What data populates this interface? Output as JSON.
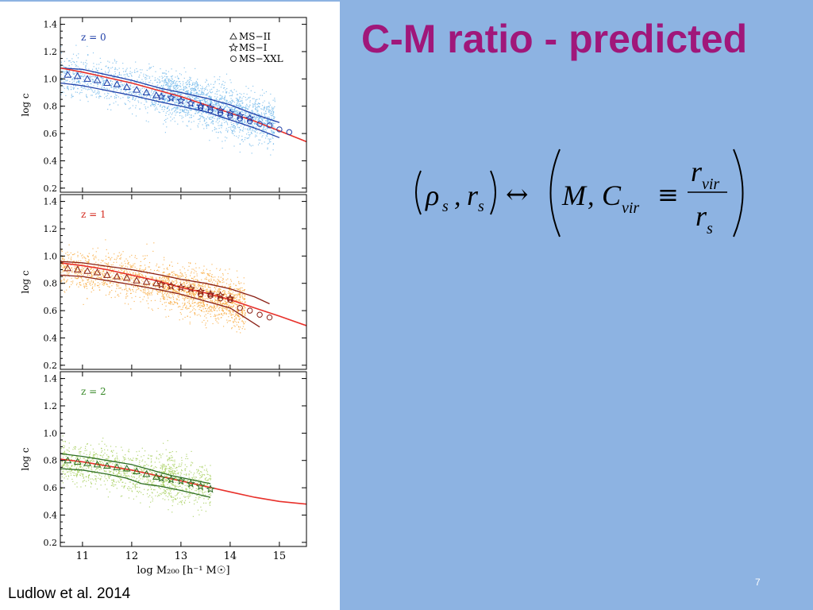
{
  "slide": {
    "title": "C-M ratio - predicted",
    "citation": "Ludlow et al. 2014",
    "page_number": "7"
  },
  "equation": {
    "rho": "ρ",
    "r": "r",
    "s": "s",
    "M": "M",
    "C": "C",
    "vir": "vir",
    "comma": ",",
    "arrow": "↔",
    "equiv": "≡"
  },
  "colors": {
    "right_background": "#8db3e2",
    "title": "#a0177a",
    "fit_line": "#e8302a"
  },
  "chart_data": [
    {
      "type": "scatter",
      "panel": "z = 0",
      "redshift_label": "z = 0",
      "label_color": "#1f3fa8",
      "scatter_color": "#6ab4ea",
      "line_color": "#1f3fa8",
      "ylabel": "log c",
      "xlabel": "log M₂₀₀ [h⁻¹ M☉]",
      "xlim": [
        10.55,
        15.55
      ],
      "ylim": [
        0.17,
        1.45
      ],
      "yticks": [
        "0.2",
        "0.4",
        "0.6",
        "0.8",
        "1.0",
        "1.2",
        "1.4"
      ],
      "legend": {
        "placement": "top-right",
        "entries": [
          {
            "marker": "triangle",
            "label": "MS−II"
          },
          {
            "marker": "star",
            "label": "MS−I"
          },
          {
            "marker": "circle",
            "label": "MS−XXL"
          }
        ]
      },
      "scatter_clouds": [
        {
          "x0": 10.55,
          "x1": 13.5,
          "c0": 1.03,
          "c1": 0.84,
          "spread": 0.12
        },
        {
          "x0": 12.6,
          "x1": 14.9,
          "c0": 0.9,
          "c1": 0.68,
          "spread": 0.13
        },
        {
          "x0": 13.5,
          "x1": 14.9,
          "c0": 0.82,
          "c1": 0.66,
          "spread": 0.13
        }
      ],
      "fit": {
        "x": [
          10.55,
          11,
          11.5,
          12,
          12.5,
          13,
          13.5,
          14,
          14.5,
          15,
          15.55
        ],
        "y": [
          1.08,
          1.05,
          1.01,
          0.97,
          0.92,
          0.87,
          0.81,
          0.75,
          0.69,
          0.62,
          0.54
        ]
      },
      "upper": {
        "x": [
          10.55,
          11,
          12,
          12.6,
          13,
          13.5,
          14,
          14.5,
          15
        ],
        "y": [
          1.08,
          1.07,
          0.99,
          0.93,
          0.9,
          0.86,
          0.81,
          0.74,
          0.68
        ]
      },
      "lower": {
        "x": [
          10.55,
          11,
          12,
          12.6,
          13,
          13.5,
          14,
          14.5,
          15
        ],
        "y": [
          0.97,
          0.95,
          0.88,
          0.83,
          0.8,
          0.76,
          0.7,
          0.64,
          0.57
        ]
      },
      "ms2": {
        "x": [
          10.7,
          10.9,
          11.1,
          11.3,
          11.5,
          11.7,
          11.9,
          12.1,
          12.3,
          12.5
        ],
        "y": [
          1.03,
          1.02,
          1.0,
          0.99,
          0.97,
          0.96,
          0.94,
          0.92,
          0.9,
          0.88
        ]
      },
      "ms1": {
        "x": [
          12.6,
          12.8,
          13.0,
          13.2,
          13.4,
          13.6,
          13.8,
          14.0,
          14.2,
          14.4
        ],
        "y": [
          0.87,
          0.86,
          0.84,
          0.82,
          0.8,
          0.79,
          0.77,
          0.75,
          0.73,
          0.71
        ]
      },
      "msxxl": {
        "x": [
          13.4,
          13.6,
          13.8,
          14.0,
          14.2,
          14.4,
          14.6,
          14.8,
          15.0,
          15.2
        ],
        "y": [
          0.79,
          0.77,
          0.75,
          0.73,
          0.71,
          0.69,
          0.67,
          0.66,
          0.63,
          0.61
        ]
      }
    },
    {
      "type": "scatter",
      "panel": "z = 1",
      "redshift_label": "z = 1",
      "label_color": "#d42a1e",
      "scatter_color": "#f8a431",
      "line_color": "#8a2015",
      "ylabel": "log c",
      "xlim": [
        10.55,
        15.55
      ],
      "ylim": [
        0.17,
        1.45
      ],
      "yticks": [
        "0.2",
        "0.4",
        "0.6",
        "0.8",
        "1.0",
        "1.2",
        "1.4"
      ],
      "scatter_clouds": [
        {
          "x0": 10.55,
          "x1": 13.5,
          "c0": 0.92,
          "c1": 0.74,
          "spread": 0.12
        },
        {
          "x0": 12.6,
          "x1": 14.3,
          "c0": 0.78,
          "c1": 0.65,
          "spread": 0.13
        },
        {
          "x0": 13.5,
          "x1": 14.3,
          "c0": 0.72,
          "c1": 0.62,
          "spread": 0.13
        }
      ],
      "fit": {
        "x": [
          10.55,
          11,
          11.5,
          12,
          12.5,
          13,
          13.5,
          14,
          14.5,
          15,
          15.55
        ],
        "y": [
          0.95,
          0.93,
          0.9,
          0.86,
          0.82,
          0.77,
          0.73,
          0.68,
          0.62,
          0.56,
          0.49
        ]
      },
      "upper": {
        "x": [
          10.55,
          11,
          12,
          12.6,
          13,
          13.5,
          14,
          14.5,
          14.8
        ],
        "y": [
          0.96,
          0.95,
          0.9,
          0.86,
          0.83,
          0.8,
          0.76,
          0.7,
          0.65
        ]
      },
      "lower": {
        "x": [
          10.55,
          11,
          12,
          12.6,
          13,
          13.5,
          14,
          14.3,
          14.6
        ],
        "y": [
          0.86,
          0.85,
          0.79,
          0.75,
          0.72,
          0.67,
          0.62,
          0.55,
          0.48
        ]
      },
      "ms2": {
        "x": [
          10.7,
          10.9,
          11.1,
          11.3,
          11.5,
          11.7,
          11.9,
          12.1,
          12.3,
          12.5
        ],
        "y": [
          0.91,
          0.9,
          0.89,
          0.88,
          0.86,
          0.85,
          0.84,
          0.82,
          0.81,
          0.8
        ]
      },
      "ms1": {
        "x": [
          12.6,
          12.8,
          13.0,
          13.2,
          13.4,
          13.6,
          13.8,
          14.0
        ],
        "y": [
          0.79,
          0.78,
          0.77,
          0.76,
          0.74,
          0.72,
          0.71,
          0.69
        ]
      },
      "msxxl": {
        "x": [
          13.4,
          13.6,
          13.8,
          14.0,
          14.2,
          14.4,
          14.6,
          14.8
        ],
        "y": [
          0.72,
          0.71,
          0.69,
          0.68,
          0.62,
          0.6,
          0.57,
          0.55
        ]
      }
    },
    {
      "type": "scatter",
      "panel": "z = 2",
      "redshift_label": "z = 2",
      "label_color": "#3a8a2a",
      "scatter_color": "#9cc94a",
      "line_color": "#2e6e25",
      "ylabel": "log c",
      "xlabel": "log M₂₀₀ [h⁻¹ M☉]",
      "xlim": [
        10.55,
        15.55
      ],
      "ylim": [
        0.17,
        1.45
      ],
      "yticks": [
        "0.2",
        "0.4",
        "0.6",
        "0.8",
        "1.0",
        "1.2",
        "1.4"
      ],
      "xticks": [
        "11",
        "12",
        "13",
        "14",
        "15"
      ],
      "scatter_clouds": [
        {
          "x0": 10.55,
          "x1": 12.9,
          "c0": 0.8,
          "c1": 0.66,
          "spread": 0.12
        },
        {
          "x0": 12.6,
          "x1": 13.6,
          "c0": 0.68,
          "c1": 0.6,
          "spread": 0.13
        }
      ],
      "fit": {
        "x": [
          10.55,
          11,
          11.5,
          12,
          12.5,
          13,
          13.5,
          14,
          14.5,
          15,
          15.55
        ],
        "y": [
          0.81,
          0.79,
          0.76,
          0.73,
          0.69,
          0.65,
          0.61,
          0.57,
          0.53,
          0.5,
          0.48
        ]
      },
      "upper": {
        "x": [
          10.55,
          11,
          11.5,
          12,
          12.5,
          12.8,
          13.2,
          13.6
        ],
        "y": [
          0.85,
          0.83,
          0.8,
          0.77,
          0.72,
          0.69,
          0.66,
          0.63
        ]
      },
      "lower": {
        "x": [
          10.55,
          11,
          11.5,
          11.9,
          12.2,
          12.4,
          12.6,
          13.0,
          13.6
        ],
        "y": [
          0.74,
          0.73,
          0.7,
          0.67,
          0.63,
          0.62,
          0.61,
          0.58,
          0.53
        ]
      },
      "ms2": {
        "x": [
          10.7,
          10.9,
          11.1,
          11.3,
          11.5,
          11.7,
          11.9,
          12.1,
          12.3,
          12.5
        ],
        "y": [
          0.8,
          0.79,
          0.78,
          0.77,
          0.76,
          0.75,
          0.74,
          0.72,
          0.7,
          0.68
        ]
      },
      "ms1": {
        "x": [
          12.6,
          12.8,
          13.0,
          13.2,
          13.4,
          13.6
        ],
        "y": [
          0.67,
          0.66,
          0.65,
          0.63,
          0.61,
          0.59
        ]
      },
      "msxxl": {
        "x": [],
        "y": []
      }
    }
  ]
}
